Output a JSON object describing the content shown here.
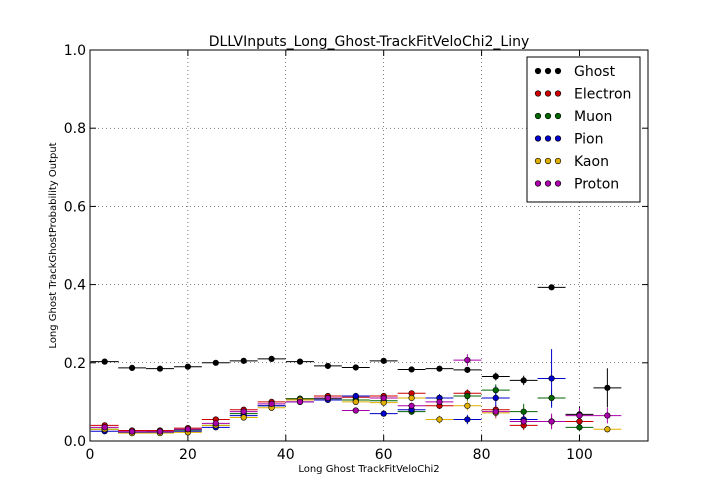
{
  "chart_data": {
    "type": "scatter",
    "title": "DLLVInputs_Long_Ghost-TrackFitVeloChi2_Liny",
    "xlabel": "Long Ghost TrackFitVeloChi2",
    "ylabel": "Long Ghost TrackGhostProbability Output",
    "xlim": [
      0,
      114
    ],
    "ylim": [
      0,
      1.0
    ],
    "xticks": [
      "0",
      "20",
      "40",
      "60",
      "80",
      "100"
    ],
    "yticks": [
      "0.0",
      "0.2",
      "0.4",
      "0.6",
      "0.8",
      "1.0"
    ],
    "grid": true,
    "legend_position": "top-right",
    "x": [
      3,
      8.6,
      14.3,
      20,
      25.7,
      31.4,
      37.1,
      42.9,
      48.6,
      54.3,
      60,
      65.7,
      71.4,
      77.1,
      82.9,
      88.6,
      94.3,
      100,
      105.7
    ],
    "x_halfwidth": 2.85,
    "series": [
      {
        "name": "Ghost",
        "color": "#000000",
        "values": [
          0.203,
          0.187,
          0.185,
          0.19,
          0.2,
          0.205,
          0.21,
          0.203,
          0.192,
          0.188,
          0.205,
          0.183,
          0.185,
          0.182,
          0.165,
          0.155,
          0.393,
          0.068,
          0.136
        ],
        "yerr": [
          0.004,
          0.003,
          0.003,
          0.003,
          0.003,
          0.004,
          0.004,
          0.004,
          0.004,
          0.005,
          0.006,
          0.005,
          0.006,
          0.007,
          0.01,
          0.012,
          0.005,
          0.02,
          0.05
        ]
      },
      {
        "name": "Electron",
        "color": "#cc0000",
        "values": [
          0.04,
          0.027,
          0.027,
          0.033,
          0.055,
          0.08,
          0.1,
          0.108,
          0.115,
          0.112,
          0.115,
          0.122,
          0.09,
          0.122,
          0.08,
          0.04,
          0.05,
          0.05,
          null
        ],
        "yerr": [
          0.003,
          0.002,
          0.002,
          0.003,
          0.004,
          0.005,
          0.005,
          0.005,
          0.005,
          0.006,
          0.006,
          0.007,
          0.008,
          0.01,
          0.012,
          0.012,
          0.015,
          0.02,
          null
        ]
      },
      {
        "name": "Muon",
        "color": "#006600",
        "values": [
          0.03,
          0.022,
          0.024,
          0.028,
          0.04,
          0.07,
          0.09,
          0.108,
          0.108,
          0.105,
          0.103,
          0.075,
          0.11,
          0.115,
          0.13,
          0.075,
          0.11,
          0.035,
          null
        ],
        "yerr": [
          0.003,
          0.002,
          0.002,
          0.003,
          0.004,
          0.005,
          0.005,
          0.005,
          0.006,
          0.006,
          0.007,
          0.008,
          0.01,
          0.012,
          0.015,
          0.02,
          0.02,
          0.01,
          null
        ]
      },
      {
        "name": "Pion",
        "color": "#0000cc",
        "values": [
          0.025,
          0.022,
          0.022,
          0.025,
          0.035,
          0.065,
          0.09,
          0.1,
          0.105,
          0.115,
          0.07,
          0.08,
          0.11,
          0.055,
          0.11,
          0.055,
          0.16,
          null,
          null
        ],
        "yerr": [
          0.002,
          0.002,
          0.002,
          0.002,
          0.003,
          0.004,
          0.005,
          0.005,
          0.006,
          0.006,
          0.007,
          0.008,
          0.01,
          0.012,
          0.03,
          0.02,
          0.075,
          null,
          null
        ]
      },
      {
        "name": "Kaon",
        "color": "#e0b000",
        "values": [
          0.03,
          0.02,
          0.02,
          0.022,
          0.04,
          0.06,
          0.085,
          0.105,
          0.11,
          0.1,
          0.098,
          0.11,
          0.055,
          0.09,
          0.072,
          null,
          null,
          null,
          0.03
        ],
        "yerr": [
          0.003,
          0.002,
          0.002,
          0.002,
          0.003,
          0.004,
          0.005,
          0.005,
          0.006,
          0.006,
          0.007,
          0.008,
          0.01,
          0.012,
          0.015,
          null,
          null,
          null,
          0.008
        ]
      },
      {
        "name": "Proton",
        "color": "#aa00aa",
        "values": [
          0.035,
          0.024,
          0.024,
          0.03,
          0.045,
          0.075,
          0.095,
          0.1,
          0.11,
          0.078,
          0.11,
          0.09,
          0.1,
          0.207,
          0.075,
          0.05,
          0.05,
          0.065,
          0.065
        ],
        "yerr": [
          0.003,
          0.002,
          0.002,
          0.003,
          0.004,
          0.005,
          0.005,
          0.005,
          0.006,
          0.006,
          0.007,
          0.008,
          0.01,
          0.015,
          0.015,
          0.015,
          0.02,
          0.02,
          0.02
        ]
      }
    ]
  }
}
